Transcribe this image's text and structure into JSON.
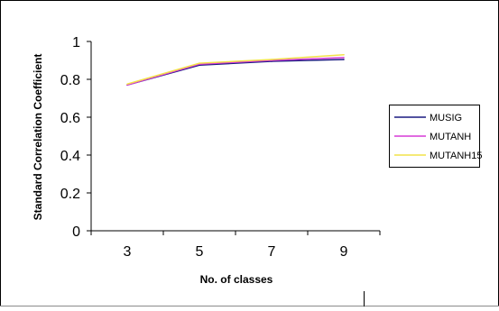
{
  "chart_data": {
    "type": "line",
    "title": "",
    "xlabel": "No. of classes",
    "ylabel": "Standard Correlation Coefficient",
    "x": [
      3,
      5,
      7,
      9
    ],
    "xtick_labels": [
      "3",
      "5",
      "7",
      "9"
    ],
    "ylim": [
      0,
      1
    ],
    "ytick_labels": [
      "0",
      "0.2",
      "0.4",
      "0.6",
      "0.8",
      "1"
    ],
    "grid": false,
    "legend_position": "right",
    "series": [
      {
        "name": "MUSIG",
        "color": "#1a1a80",
        "values": [
          0.77,
          0.875,
          0.895,
          0.905
        ]
      },
      {
        "name": "MUTANH",
        "color": "#d63ad6",
        "values": [
          0.77,
          0.88,
          0.9,
          0.915
        ]
      },
      {
        "name": "MUTANH15",
        "color": "#f2e24a",
        "values": [
          0.775,
          0.885,
          0.905,
          0.93
        ]
      }
    ]
  }
}
